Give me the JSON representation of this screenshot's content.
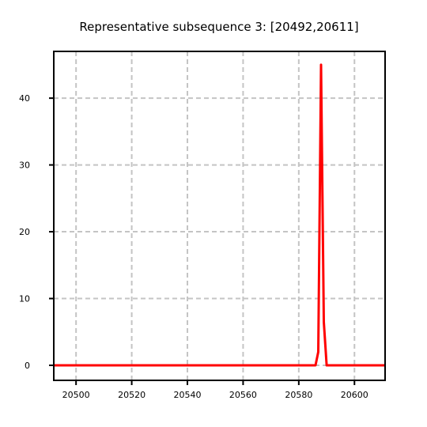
{
  "chart_data": {
    "type": "line",
    "title": "Representative subsequence 3: [20492,20611]",
    "xlabel": "",
    "ylabel": "",
    "xlim": [
      20492,
      20611
    ],
    "ylim": [
      -2.25,
      47
    ],
    "xticks": [
      20500,
      20520,
      20540,
      20560,
      20580,
      20600
    ],
    "yticks": [
      0,
      10,
      20,
      30,
      40
    ],
    "grid": true,
    "series": [
      {
        "color": "#ff0000",
        "x": [
          20492,
          20586,
          20587,
          20588,
          20589,
          20590,
          20611
        ],
        "y": [
          0,
          0,
          2,
          45,
          6.5,
          0,
          0
        ]
      }
    ]
  }
}
